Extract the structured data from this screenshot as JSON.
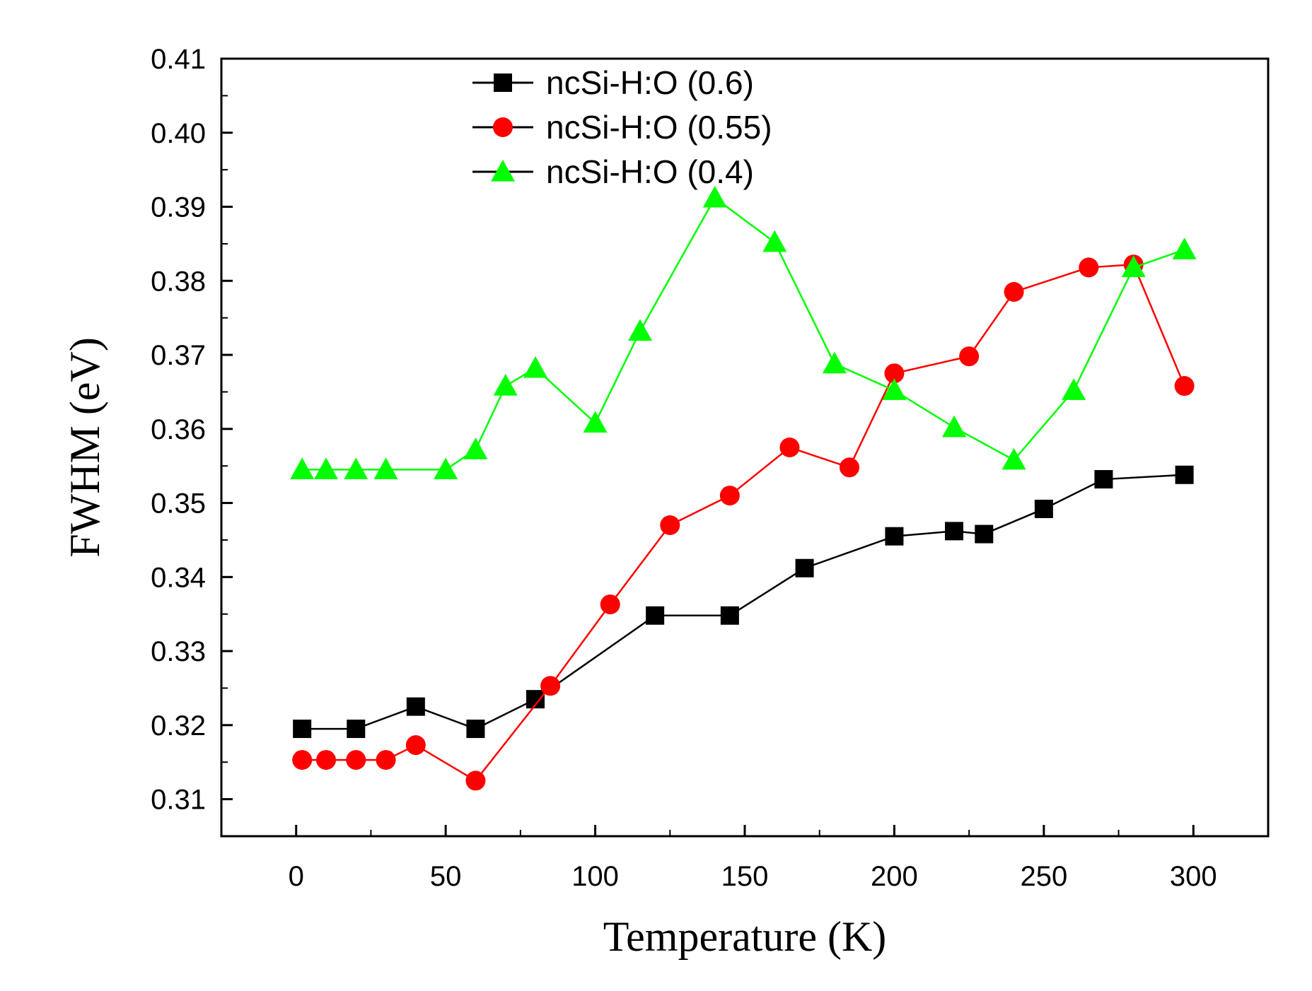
{
  "chart_data": {
    "type": "line",
    "title": "",
    "xlabel": "Temperature (K)",
    "ylabel": "FWHM (eV)",
    "xlim": [
      -25,
      325
    ],
    "ylim": [
      0.305,
      0.41
    ],
    "xticks": [
      0,
      50,
      100,
      150,
      200,
      250,
      300
    ],
    "xtick_labels": [
      "0",
      "50",
      "100",
      "150",
      "200",
      "250",
      "300"
    ],
    "yticks": [
      0.31,
      0.32,
      0.33,
      0.34,
      0.35,
      0.36,
      0.37,
      0.38,
      0.39,
      0.4,
      0.41
    ],
    "ytick_labels": [
      "0.31",
      "0.32",
      "0.33",
      "0.34",
      "0.35",
      "0.36",
      "0.37",
      "0.38",
      "0.39",
      "0.40",
      "0.41"
    ],
    "grid": false,
    "legend_position": "top-center",
    "series": [
      {
        "name": "ncSi-H:O (0.6)",
        "color": "#000000",
        "marker": "square",
        "x": [
          2,
          20,
          40,
          60,
          80,
          120,
          145,
          170,
          200,
          220,
          230,
          250,
          270,
          297
        ],
        "y": [
          0.3195,
          0.3195,
          0.3225,
          0.3195,
          0.3235,
          0.3348,
          0.3348,
          0.3412,
          0.3455,
          0.3462,
          0.3458,
          0.3492,
          0.3532,
          0.3538
        ]
      },
      {
        "name": "ncSi-H:O (0.55)",
        "color": "#ff0000",
        "marker": "circle",
        "x": [
          2,
          10,
          20,
          30,
          40,
          60,
          85,
          105,
          125,
          145,
          165,
          185,
          200,
          225,
          240,
          265,
          280,
          297
        ],
        "y": [
          0.3153,
          0.3153,
          0.3153,
          0.3153,
          0.3173,
          0.3125,
          0.3253,
          0.3363,
          0.347,
          0.351,
          0.3575,
          0.3548,
          0.3675,
          0.3698,
          0.3785,
          0.3818,
          0.3822,
          0.3658
        ]
      },
      {
        "name": "ncSi-H:O (0.4)",
        "color": "#00ff00",
        "marker": "triangle",
        "x": [
          2,
          10,
          20,
          30,
          50,
          60,
          70,
          80,
          100,
          115,
          140,
          160,
          180,
          200,
          220,
          240,
          260,
          280,
          297
        ],
        "y": [
          0.3545,
          0.3545,
          0.3545,
          0.3545,
          0.3545,
          0.3572,
          0.3658,
          0.3682,
          0.3608,
          0.3732,
          0.3912,
          0.3852,
          0.3688,
          0.3652,
          0.3602,
          0.3558,
          0.3652,
          0.3818,
          0.3842
        ]
      }
    ]
  }
}
